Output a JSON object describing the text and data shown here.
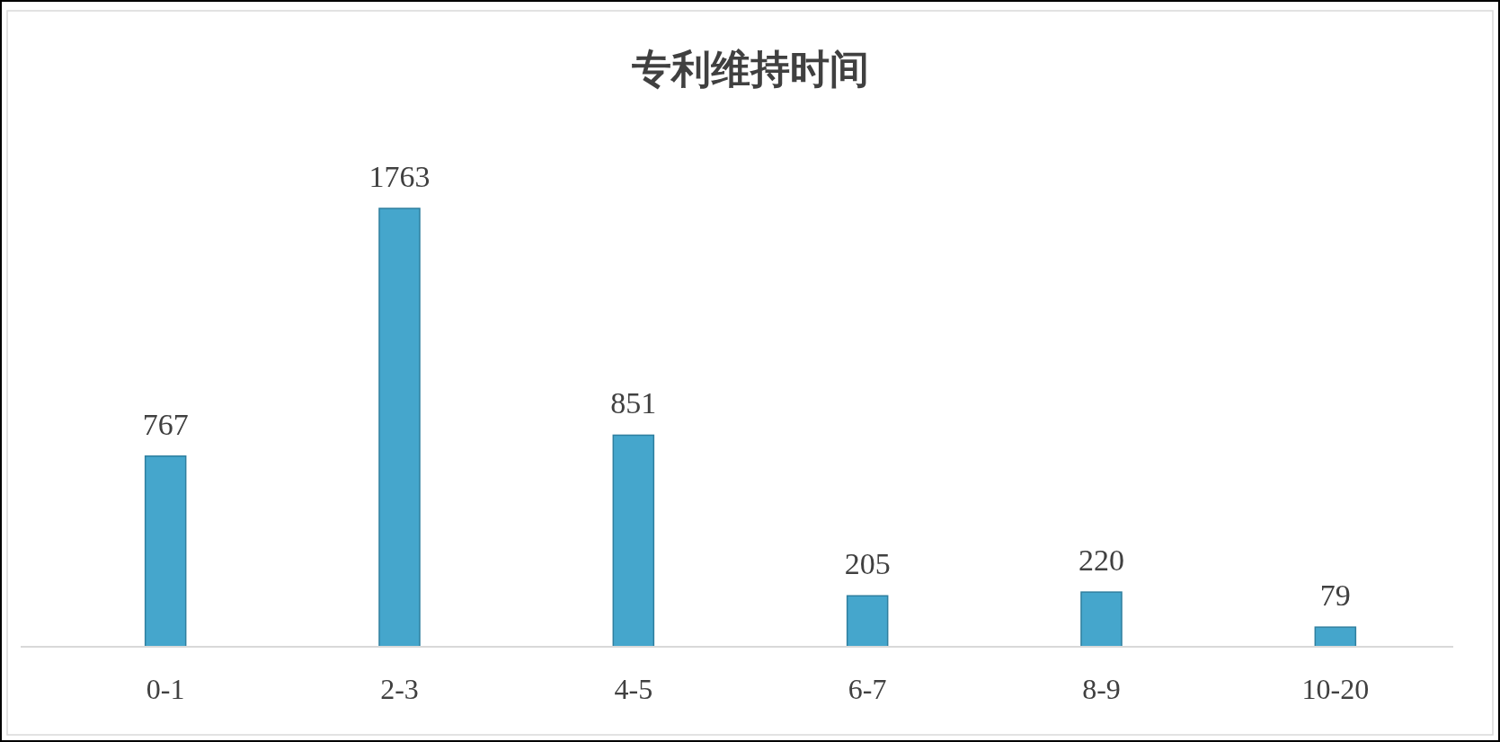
{
  "chart_data": {
    "type": "bar",
    "title": "专利维持时间",
    "categories": [
      "0-1",
      "2-3",
      "4-5",
      "6-7",
      "8-9",
      "10-20"
    ],
    "values": [
      767,
      1763,
      851,
      205,
      220,
      79
    ],
    "color": "#45a6cc",
    "data_labels": true
  }
}
